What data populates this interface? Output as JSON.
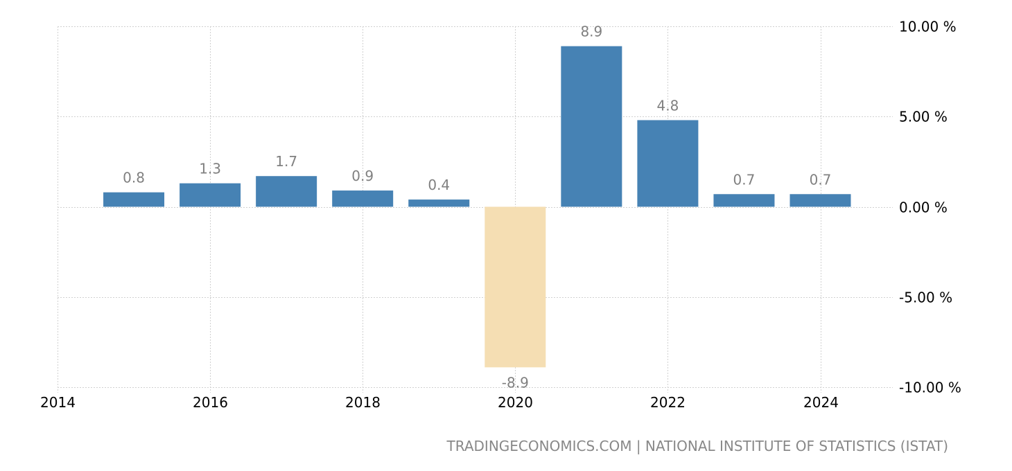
{
  "chart_data": {
    "type": "bar",
    "categories": [
      "2015",
      "2016",
      "2017",
      "2018",
      "2019",
      "2020",
      "2021",
      "2022",
      "2023",
      "2024"
    ],
    "values": [
      0.8,
      1.3,
      1.7,
      0.9,
      0.4,
      -8.9,
      8.9,
      4.8,
      0.7,
      0.7
    ],
    "data_labels": [
      "0.8",
      "1.3",
      "1.7",
      "0.9",
      "0.4",
      "-8.9",
      "8.9",
      "4.8",
      "0.7",
      "0.7"
    ],
    "x_ticks": [
      "2014",
      "2016",
      "2018",
      "2020",
      "2022",
      "2024"
    ],
    "y_ticks": [
      "10.00 %",
      "5.00 %",
      "0.00 %",
      "-5.00 %",
      "-10.00 %"
    ],
    "y_tick_values": [
      10,
      5,
      0,
      -5,
      -10
    ],
    "ylim": [
      -10,
      10
    ],
    "xlim": [
      2014,
      2024.97
    ],
    "grid": true,
    "title": "",
    "xlabel": "",
    "ylabel": "",
    "colors": {
      "positive": "#4682b4",
      "negative": "#f5deb3"
    }
  },
  "source": "TRADINGECONOMICS.COM | NATIONAL INSTITUTE OF STATISTICS (ISTAT)"
}
